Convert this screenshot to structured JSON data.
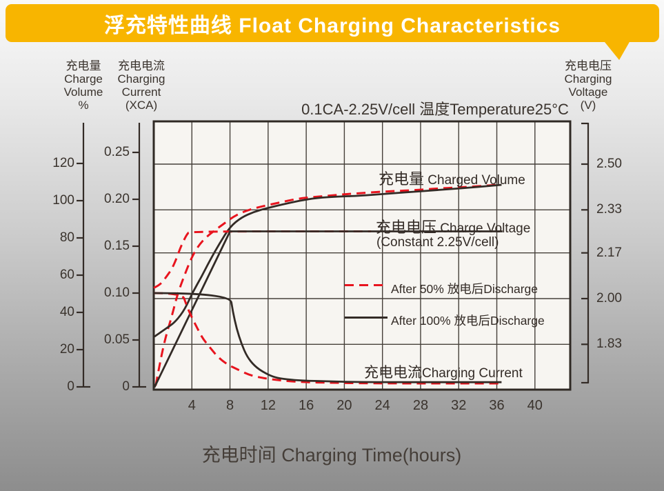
{
  "banner": {
    "title": "浮充特性曲线 Float Charging Characteristics"
  },
  "colors": {
    "banner_yellow": "#f8b500",
    "curve_red": "#e8141e",
    "curve_black": "#332b26"
  },
  "axis_headers": {
    "charge_volume": {
      "lines": [
        "充电量",
        "Charge",
        "Volume",
        "%"
      ]
    },
    "charging_current": {
      "lines": [
        "充电电流",
        "Charging",
        "Current",
        "(XCA)"
      ]
    },
    "charging_voltage": {
      "lines": [
        "充电电压",
        "Charging",
        "Voltage",
        "(V)"
      ]
    }
  },
  "chart_title": "0.1CA-2.25V/cell  温度Temperature25°C",
  "xlabel": "充电时间 Charging Time(hours)",
  "annotations": {
    "charged_volume_cn": "充电量",
    "charged_volume_en": " Charged Volume",
    "charge_voltage_cn": "充电电压",
    "charge_voltage_en": " Charge Voltage",
    "charge_voltage_sub": "(Constant 2.25V/cell)",
    "charging_current_cn": "充电电流",
    "charging_current_en": "Charging Current"
  },
  "legend": [
    {
      "label": "After 50% 放电后Discharge",
      "style": "dashed",
      "color": "#e8141e"
    },
    {
      "label": "After 100% 放电后Discharge",
      "style": "solid",
      "color": "#332b26"
    }
  ],
  "chart_data": {
    "type": "line",
    "title": "0.1CA-2.25V/cell  温度Temperature25°C",
    "x_axis": {
      "label": "充电时间 Charging Time(hours)",
      "unit": "hours",
      "ticks": [
        4,
        8,
        12,
        16,
        20,
        24,
        28,
        32,
        36,
        40
      ],
      "range": [
        0,
        43.7
      ],
      "grid": true
    },
    "y_axes": {
      "charge_volume_pct": {
        "label": "充电量 Charge Volume %",
        "ticks": [
          120,
          100,
          80,
          60,
          40,
          20,
          0
        ]
      },
      "charging_current_xca": {
        "label": "充电电流 Charging Current (XCA)",
        "ticks": [
          0.25,
          0.2,
          0.15,
          0.1,
          0.05,
          0
        ]
      },
      "charging_voltage_v": {
        "label": "充电电压 Charging Voltage (V)",
        "ticks": [
          2.5,
          2.33,
          2.17,
          2.0,
          1.83
        ],
        "grid": true
      }
    },
    "series": [
      {
        "name": "充电量 Charged Volume — After 50% 放电后Discharge",
        "axis": "charge_volume_pct",
        "color": "#e8141e",
        "dash": true,
        "smooth": true,
        "points": [
          [
            0.2,
            0.7
          ],
          [
            0.65,
            13
          ],
          [
            1.2,
            26
          ],
          [
            1.9,
            38
          ],
          [
            2.5,
            50
          ],
          [
            3.3,
            61
          ],
          [
            4.1,
            71
          ],
          [
            5,
            78
          ],
          [
            6.1,
            83
          ],
          [
            7.2,
            87
          ],
          [
            8.5,
            92
          ],
          [
            9.9,
            95
          ],
          [
            11.4,
            97
          ],
          [
            13.2,
            99
          ],
          [
            15,
            101
          ],
          [
            16.8,
            102
          ],
          [
            19,
            103
          ],
          [
            21.5,
            104
          ],
          [
            24.4,
            105
          ],
          [
            27.3,
            105.6
          ],
          [
            30.2,
            106.7
          ],
          [
            33.1,
            107.4
          ],
          [
            36.1,
            108.5
          ]
        ]
      },
      {
        "name": "充电量 Charged Volume — After 100% 放电后Discharge",
        "axis": "charge_volume_pct",
        "color": "#332b26",
        "dash": false,
        "smooth": true,
        "points": [
          [
            0.07,
            27
          ],
          [
            1.2,
            31
          ],
          [
            2.3,
            35
          ],
          [
            3.3,
            42
          ],
          [
            4.1,
            51
          ],
          [
            5,
            59
          ],
          [
            5.9,
            68
          ],
          [
            6.9,
            77
          ],
          [
            8,
            86
          ],
          [
            9.2,
            91
          ],
          [
            10.5,
            94
          ],
          [
            11.9,
            96
          ],
          [
            13.5,
            98
          ],
          [
            15.3,
            100
          ],
          [
            17.1,
            101.5
          ],
          [
            19.3,
            102.2
          ],
          [
            21.5,
            102.6
          ],
          [
            24.4,
            103.7
          ],
          [
            27.3,
            104.8
          ],
          [
            30.2,
            105.9
          ],
          [
            33.1,
            107
          ],
          [
            36.5,
            108.5
          ]
        ]
      },
      {
        "name": "充电电压 Charge Voltage (Constant 2.25V/cell) — After 50% 放电后Discharge",
        "axis": "charging_voltage_v",
        "color": "#e8141e",
        "dash": true,
        "smooth": true,
        "points": [
          [
            0,
            2.04
          ],
          [
            0.65,
            2.05
          ],
          [
            1.3,
            2.08
          ],
          [
            1.9,
            2.11
          ],
          [
            2.4,
            2.15
          ],
          [
            2.8,
            2.19
          ],
          [
            3.2,
            2.22
          ],
          [
            3.5,
            2.24
          ],
          [
            3.8,
            2.25
          ],
          [
            22.8,
            2.25
          ]
        ]
      },
      {
        "name": "充电电压 Charge Voltage (Constant 2.25V/cell) — After 100% 放电后Discharge",
        "axis": "charging_voltage_v",
        "color": "#332b26",
        "dash": false,
        "smooth": false,
        "points": [
          [
            0.07,
            1.67
          ],
          [
            8,
            2.25
          ],
          [
            36.6,
            2.25
          ]
        ]
      },
      {
        "name": "充电电流 Charging Current — After 50% 放电后Discharge",
        "axis": "charging_current_xca",
        "color": "#e8141e",
        "dash": true,
        "smooth": true,
        "points": [
          [
            0,
            0.1
          ],
          [
            3,
            0.1
          ],
          [
            3.4,
            0.088
          ],
          [
            3.9,
            0.076
          ],
          [
            4.5,
            0.064
          ],
          [
            5.1,
            0.052
          ],
          [
            5.9,
            0.042
          ],
          [
            6.7,
            0.032
          ],
          [
            7.7,
            0.024
          ],
          [
            8.9,
            0.018
          ],
          [
            10.2,
            0.012
          ],
          [
            11.7,
            0.009
          ],
          [
            13.5,
            0.0066
          ],
          [
            15.7,
            0.005
          ],
          [
            18.6,
            0.0044
          ],
          [
            23,
            0.0037
          ],
          [
            36.5,
            0.0037
          ]
        ]
      },
      {
        "name": "充电电流 Charging Current — After 100% 放电后Discharge",
        "axis": "charging_current_xca",
        "color": "#332b26",
        "dash": false,
        "smooth": true,
        "points": [
          [
            0,
            0.1
          ],
          [
            8,
            0.1
          ],
          [
            8.3,
            0.08
          ],
          [
            8.7,
            0.062
          ],
          [
            9.2,
            0.046
          ],
          [
            9.8,
            0.032
          ],
          [
            10.6,
            0.022
          ],
          [
            11.6,
            0.015
          ],
          [
            12.7,
            0.01
          ],
          [
            13.9,
            0.008
          ],
          [
            15.7,
            0.0066
          ],
          [
            18,
            0.006
          ],
          [
            21.5,
            0.005
          ],
          [
            36.5,
            0.005
          ]
        ]
      }
    ]
  }
}
